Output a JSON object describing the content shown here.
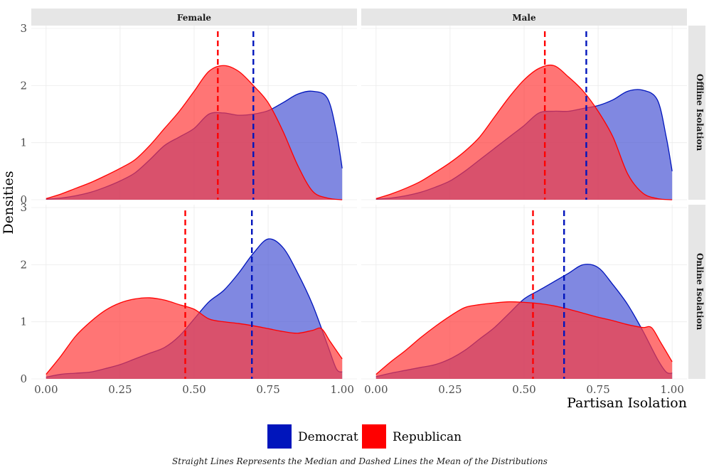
{
  "chart_data": {
    "type": "area",
    "subtype": "density",
    "x_label": "Partisan Isolation",
    "y_label": "Densities",
    "caption": "Straight Lines Represents the Median and Dashed Lines the Mean of the Distributions",
    "x_ticks": [
      "0.00",
      "0.25",
      "0.50",
      "0.75",
      "1.00"
    ],
    "y_ticks": [
      "0",
      "1",
      "2",
      "3"
    ],
    "x_range": [
      -0.05,
      1.05
    ],
    "y_range": [
      0,
      3.05
    ],
    "column_labels": [
      "Female",
      "Male"
    ],
    "row_labels": [
      "Offline Isolation",
      "Online Isolation"
    ],
    "legend": [
      {
        "name": "Democrat",
        "color": "#0015BC"
      },
      {
        "name": "Republican",
        "color": "#FF0000"
      }
    ],
    "colors": {
      "democrat_line": "#0015BC",
      "democrat_fill": "#4a56d4",
      "republican_line": "#FF0000",
      "republican_fill": "#ff3b3b"
    },
    "panels": [
      {
        "column": "Female",
        "row": "Offline Isolation",
        "democrat_mean": 0.7,
        "republican_mean": 0.58,
        "democrat": [
          [
            0,
            0.01
          ],
          [
            0.05,
            0.03
          ],
          [
            0.1,
            0.07
          ],
          [
            0.15,
            0.13
          ],
          [
            0.2,
            0.22
          ],
          [
            0.25,
            0.33
          ],
          [
            0.3,
            0.47
          ],
          [
            0.35,
            0.7
          ],
          [
            0.4,
            0.95
          ],
          [
            0.45,
            1.1
          ],
          [
            0.5,
            1.25
          ],
          [
            0.55,
            1.5
          ],
          [
            0.6,
            1.52
          ],
          [
            0.65,
            1.48
          ],
          [
            0.7,
            1.5
          ],
          [
            0.75,
            1.56
          ],
          [
            0.8,
            1.7
          ],
          [
            0.85,
            1.85
          ],
          [
            0.9,
            1.9
          ],
          [
            0.95,
            1.78
          ],
          [
            0.98,
            1.2
          ],
          [
            1.0,
            0.55
          ]
        ],
        "republican": [
          [
            0,
            0.02
          ],
          [
            0.05,
            0.1
          ],
          [
            0.1,
            0.2
          ],
          [
            0.15,
            0.3
          ],
          [
            0.2,
            0.42
          ],
          [
            0.25,
            0.55
          ],
          [
            0.3,
            0.7
          ],
          [
            0.35,
            0.95
          ],
          [
            0.4,
            1.25
          ],
          [
            0.45,
            1.55
          ],
          [
            0.5,
            1.9
          ],
          [
            0.55,
            2.25
          ],
          [
            0.6,
            2.35
          ],
          [
            0.65,
            2.25
          ],
          [
            0.7,
            2.0
          ],
          [
            0.75,
            1.7
          ],
          [
            0.8,
            1.2
          ],
          [
            0.85,
            0.6
          ],
          [
            0.9,
            0.15
          ],
          [
            0.95,
            0.03
          ],
          [
            1.0,
            0.0
          ]
        ]
      },
      {
        "column": "Male",
        "row": "Offline Isolation",
        "democrat_mean": 0.71,
        "republican_mean": 0.57,
        "democrat": [
          [
            0,
            0.01
          ],
          [
            0.05,
            0.03
          ],
          [
            0.1,
            0.07
          ],
          [
            0.15,
            0.13
          ],
          [
            0.2,
            0.22
          ],
          [
            0.25,
            0.33
          ],
          [
            0.3,
            0.5
          ],
          [
            0.35,
            0.7
          ],
          [
            0.4,
            0.9
          ],
          [
            0.45,
            1.1
          ],
          [
            0.5,
            1.3
          ],
          [
            0.55,
            1.52
          ],
          [
            0.6,
            1.55
          ],
          [
            0.65,
            1.55
          ],
          [
            0.7,
            1.6
          ],
          [
            0.75,
            1.65
          ],
          [
            0.8,
            1.75
          ],
          [
            0.85,
            1.9
          ],
          [
            0.9,
            1.92
          ],
          [
            0.95,
            1.75
          ],
          [
            0.98,
            1.1
          ],
          [
            1.0,
            0.5
          ]
        ],
        "republican": [
          [
            0,
            0.02
          ],
          [
            0.05,
            0.1
          ],
          [
            0.1,
            0.2
          ],
          [
            0.15,
            0.32
          ],
          [
            0.2,
            0.48
          ],
          [
            0.25,
            0.65
          ],
          [
            0.3,
            0.85
          ],
          [
            0.35,
            1.1
          ],
          [
            0.4,
            1.45
          ],
          [
            0.45,
            1.8
          ],
          [
            0.5,
            2.1
          ],
          [
            0.55,
            2.3
          ],
          [
            0.6,
            2.35
          ],
          [
            0.65,
            2.15
          ],
          [
            0.7,
            1.9
          ],
          [
            0.75,
            1.55
          ],
          [
            0.8,
            1.1
          ],
          [
            0.85,
            0.45
          ],
          [
            0.9,
            0.12
          ],
          [
            0.95,
            0.02
          ],
          [
            1.0,
            0.0
          ]
        ]
      },
      {
        "column": "Female",
        "row": "Online Isolation",
        "democrat_mean": 0.695,
        "republican_mean": 0.47,
        "democrat": [
          [
            0,
            0.03
          ],
          [
            0.05,
            0.08
          ],
          [
            0.1,
            0.1
          ],
          [
            0.15,
            0.12
          ],
          [
            0.2,
            0.18
          ],
          [
            0.25,
            0.25
          ],
          [
            0.3,
            0.35
          ],
          [
            0.35,
            0.45
          ],
          [
            0.4,
            0.55
          ],
          [
            0.45,
            0.75
          ],
          [
            0.5,
            1.05
          ],
          [
            0.55,
            1.35
          ],
          [
            0.6,
            1.55
          ],
          [
            0.65,
            1.85
          ],
          [
            0.7,
            2.2
          ],
          [
            0.75,
            2.45
          ],
          [
            0.8,
            2.3
          ],
          [
            0.85,
            1.85
          ],
          [
            0.9,
            1.3
          ],
          [
            0.95,
            0.6
          ],
          [
            0.98,
            0.18
          ],
          [
            1.0,
            0.12
          ]
        ],
        "republican": [
          [
            0,
            0.08
          ],
          [
            0.05,
            0.4
          ],
          [
            0.1,
            0.75
          ],
          [
            0.15,
            1.0
          ],
          [
            0.2,
            1.2
          ],
          [
            0.25,
            1.33
          ],
          [
            0.3,
            1.4
          ],
          [
            0.35,
            1.42
          ],
          [
            0.4,
            1.38
          ],
          [
            0.45,
            1.3
          ],
          [
            0.5,
            1.22
          ],
          [
            0.55,
            1.05
          ],
          [
            0.6,
            1.0
          ],
          [
            0.65,
            0.97
          ],
          [
            0.7,
            0.93
          ],
          [
            0.75,
            0.88
          ],
          [
            0.8,
            0.83
          ],
          [
            0.85,
            0.8
          ],
          [
            0.9,
            0.85
          ],
          [
            0.93,
            0.88
          ],
          [
            0.96,
            0.65
          ],
          [
            1.0,
            0.35
          ]
        ]
      },
      {
        "column": "Male",
        "row": "Online Isolation",
        "democrat_mean": 0.635,
        "republican_mean": 0.53,
        "democrat": [
          [
            0,
            0.04
          ],
          [
            0.05,
            0.1
          ],
          [
            0.1,
            0.15
          ],
          [
            0.15,
            0.2
          ],
          [
            0.2,
            0.25
          ],
          [
            0.25,
            0.35
          ],
          [
            0.3,
            0.5
          ],
          [
            0.35,
            0.7
          ],
          [
            0.4,
            0.9
          ],
          [
            0.45,
            1.15
          ],
          [
            0.5,
            1.4
          ],
          [
            0.55,
            1.55
          ],
          [
            0.6,
            1.7
          ],
          [
            0.65,
            1.85
          ],
          [
            0.7,
            2.0
          ],
          [
            0.75,
            1.95
          ],
          [
            0.8,
            1.65
          ],
          [
            0.85,
            1.3
          ],
          [
            0.9,
            0.85
          ],
          [
            0.95,
            0.35
          ],
          [
            0.98,
            0.12
          ],
          [
            1.0,
            0.1
          ]
        ],
        "republican": [
          [
            0,
            0.08
          ],
          [
            0.05,
            0.3
          ],
          [
            0.1,
            0.5
          ],
          [
            0.15,
            0.72
          ],
          [
            0.2,
            0.92
          ],
          [
            0.25,
            1.1
          ],
          [
            0.3,
            1.25
          ],
          [
            0.35,
            1.3
          ],
          [
            0.4,
            1.33
          ],
          [
            0.45,
            1.35
          ],
          [
            0.5,
            1.34
          ],
          [
            0.55,
            1.32
          ],
          [
            0.6,
            1.28
          ],
          [
            0.65,
            1.22
          ],
          [
            0.7,
            1.15
          ],
          [
            0.75,
            1.08
          ],
          [
            0.8,
            1.02
          ],
          [
            0.85,
            0.95
          ],
          [
            0.9,
            0.9
          ],
          [
            0.93,
            0.9
          ],
          [
            0.96,
            0.65
          ],
          [
            1.0,
            0.3
          ]
        ]
      }
    ]
  }
}
